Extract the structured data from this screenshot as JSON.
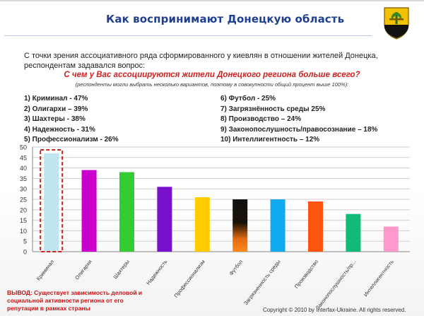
{
  "header": {
    "title": "Как воспринимают Донецкую область"
  },
  "intro": {
    "line1": "С точки зрения ассоциативного ряда сформированного у киевлян в отношении жителей Донецка,",
    "line2": "респондентам задавался вопрос:",
    "question": "С чем у Вас ассоциируются жители Донецкого региона больше всего?",
    "note": "(респонденты могли выбрать несколько вариантов, поэтому в совокупности общий процент выше 100%):"
  },
  "legend_list": [
    "1) Криминал - 47%",
    "2) Олигархи – 39%",
    "3) Шахтеры - 38%",
    "4) Надежность - 31%",
    "5) Профессионализм - 26%",
    "6) Футбол - 25%",
    "7) Загрязнённость среды 25%",
    "8) Производство – 24%",
    "9) Законопослушность/правосознание – 18%",
    "10) Интеллигентность – 12%"
  ],
  "conclusion": {
    "line1": "ВЫВОД: Существует зависимость деловой и",
    "line2": "социальной активности региона от его",
    "line3": "репутации в рамках страны"
  },
  "footer": {
    "copyright": "Copyright © 2010 by Interfax-Ukraine. All rights reserved."
  },
  "colors": {
    "title": "#1f3f8f",
    "question": "#d02020",
    "highlight_box": "#cc2222"
  },
  "chart_data": {
    "type": "bar",
    "categories": [
      "Криминал",
      "Олигархи",
      "Шахтеры",
      "Надежность",
      "Профессионализм",
      "Футбол",
      "Загрязненность среды",
      "Производство",
      "Законопослушность/пр...",
      "Интеллигентность"
    ],
    "values": [
      47,
      39,
      38,
      31,
      26,
      25,
      25,
      24,
      18,
      12
    ],
    "colors": [
      "#bfe6ee",
      "#cc00cc",
      "#33cc33",
      "#7711cc",
      "#ffcc00",
      "#111111",
      "#11aaee",
      "#ff5511",
      "#11bb77",
      "#ff99cc"
    ],
    "ylim": [
      0,
      50
    ],
    "yticks": [
      0,
      5,
      10,
      15,
      20,
      25,
      30,
      35,
      40,
      45,
      50
    ],
    "grid": true,
    "highlight_category": "Криминал",
    "title": "",
    "xlabel": "",
    "ylabel": ""
  }
}
